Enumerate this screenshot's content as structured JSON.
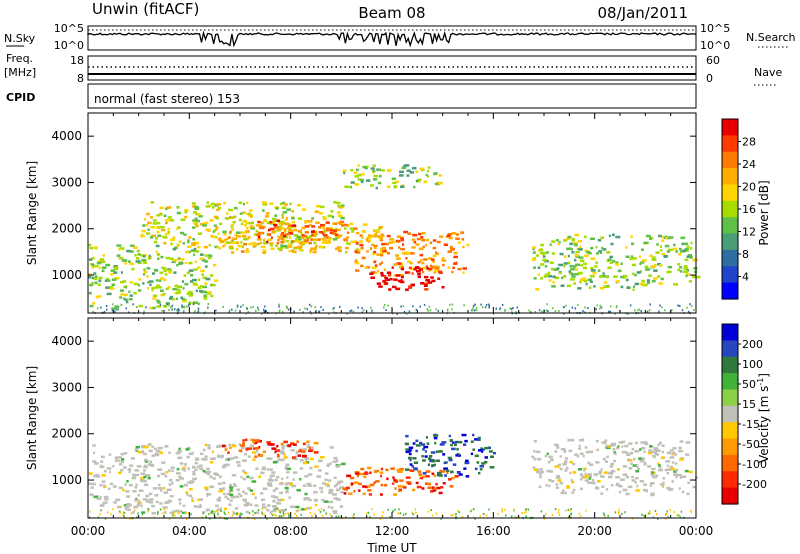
{
  "header": {
    "station": "Unwin (fitACF)",
    "beam": "Beam 08",
    "date": "08/Jan/2011"
  },
  "noise_panel": {
    "left_label": "N.Sky",
    "right_label": "N.Search",
    "left_ticks": [
      "10^5",
      "10^0"
    ],
    "right_ticks": [
      "10^5",
      "10^0"
    ]
  },
  "freq_panel": {
    "left_label_1": "Freq.",
    "left_label_2": "[MHz]",
    "right_label": "Nave",
    "left_ticks": [
      "18",
      "8"
    ],
    "right_ticks": [
      "60",
      "0"
    ]
  },
  "cpid": {
    "label": "CPID",
    "value": "normal (fast stereo) 153"
  },
  "chart_data": [
    {
      "type": "heatmap",
      "name": "Power",
      "ylabel": "Slant Range [km]",
      "ylim": [
        180,
        4500
      ],
      "yticks": [
        1000,
        2000,
        3000,
        4000
      ],
      "colorbar": {
        "label": "Power [dB]",
        "ticks": [
          "28",
          "24",
          "20",
          "16",
          "12",
          "8",
          "4"
        ],
        "colors": [
          "#e60000",
          "#ff3a00",
          "#ff7a00",
          "#ffae00",
          "#ffd400",
          "#a6dc00",
          "#5fc048",
          "#4a9d77",
          "#2f6ea0",
          "#1e44c8",
          "#0000ff"
        ]
      },
      "features": [
        {
          "x": [
            0,
            5
          ],
          "y": [
            300,
            1700
          ],
          "level": 4
        },
        {
          "x": [
            2,
            10
          ],
          "y": [
            1600,
            2600
          ],
          "level": 8
        },
        {
          "x": [
            5,
            11.5
          ],
          "y": [
            1500,
            2200
          ],
          "level": 12
        },
        {
          "x": [
            6.5,
            10
          ],
          "y": [
            1700,
            2200
          ],
          "level": 20
        },
        {
          "x": [
            10.5,
            15
          ],
          "y": [
            1000,
            2000
          ],
          "level": 16
        },
        {
          "x": [
            11,
            14
          ],
          "y": [
            700,
            1200
          ],
          "level": 28
        },
        {
          "x": [
            17.5,
            24
          ],
          "y": [
            700,
            1900
          ],
          "level": 4
        },
        {
          "x": [
            10,
            14
          ],
          "y": [
            2900,
            3400
          ],
          "level": 4
        }
      ]
    },
    {
      "type": "heatmap",
      "name": "Velocity",
      "ylabel": "Slant Range [km]",
      "xlabel": "Time UT",
      "ylim": [
        180,
        4500
      ],
      "yticks": [
        1000,
        2000,
        3000,
        4000
      ],
      "xticks": [
        "00:00",
        "04:00",
        "08:00",
        "12:00",
        "16:00",
        "20:00",
        "00:00"
      ],
      "colorbar": {
        "label": "Velocity [m s",
        "label_sup": "-1",
        "label_end": "]",
        "ticks": [
          "200",
          "100",
          "50",
          "15",
          "-15",
          "-50",
          "-100",
          "-200"
        ],
        "colors": [
          "#0000d8",
          "#2547c0",
          "#2f7a3c",
          "#3fb23a",
          "#8cd046",
          "#c0c0b8",
          "#ffc800",
          "#ff9a00",
          "#ff6a00",
          "#ff2a00",
          "#e80000"
        ]
      },
      "features": [
        {
          "x": [
            0,
            10
          ],
          "y": [
            300,
            1800
          ],
          "level": 0
        },
        {
          "x": [
            5,
            9
          ],
          "y": [
            1500,
            1900
          ],
          "level": -100
        },
        {
          "x": [
            10,
            14.5
          ],
          "y": [
            700,
            1300
          ],
          "level": -200
        },
        {
          "x": [
            12.5,
            16
          ],
          "y": [
            1100,
            2000
          ],
          "level": 200
        },
        {
          "x": [
            17.5,
            24
          ],
          "y": [
            700,
            1900
          ],
          "level": 0
        }
      ]
    }
  ]
}
